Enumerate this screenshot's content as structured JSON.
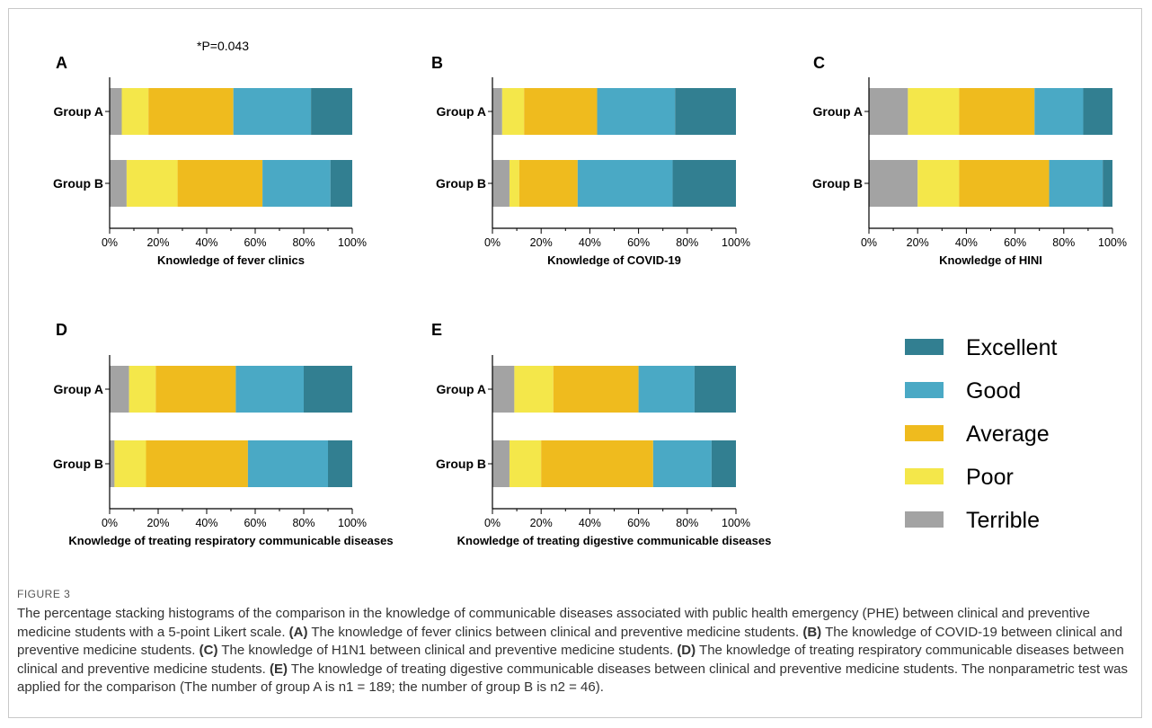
{
  "figure_label": "FIGURE 3",
  "caption_parts": [
    {
      "text": "The percentage stacking histograms of the comparison in the knowledge of communicable diseases associated with public health emergency (PHE) between clinical and preventive medicine students with a 5-point Likert scale. ",
      "bold": false
    },
    {
      "text": "(A)",
      "bold": true
    },
    {
      "text": " The knowledge of fever clinics between clinical and preventive medicine students. ",
      "bold": false
    },
    {
      "text": "(B)",
      "bold": true
    },
    {
      "text": " The knowledge of COVID-19 between clinical and preventive medicine students. ",
      "bold": false
    },
    {
      "text": "(C)",
      "bold": true
    },
    {
      "text": " The knowledge of H1N1 between clinical and preventive medicine students. ",
      "bold": false
    },
    {
      "text": "(D)",
      "bold": true
    },
    {
      "text": " The knowledge of treating respiratory communicable diseases between clinical and preventive medicine students. ",
      "bold": false
    },
    {
      "text": "(E)",
      "bold": true
    },
    {
      "text": " The knowledge of treating digestive communicable diseases between clinical and preventive medicine students. The nonparametric test was applied for the comparison (The number of group A is n1 = 189; the number of group B is n2 = 46).",
      "bold": false
    }
  ],
  "colors": {
    "Terrible": "#a3a3a3",
    "Poor": "#f4e74a",
    "Average": "#efbb1e",
    "Good": "#4aa9c5",
    "Excellent": "#327f91"
  },
  "legend": [
    "Excellent",
    "Good",
    "Average",
    "Poor",
    "Terrible"
  ],
  "chart_data": [
    {
      "panel": "A",
      "type": "bar",
      "stacked": "percent",
      "orientation": "horizontal",
      "xlabel": "Knowledge of fever clinics",
      "annotation": "*P=0.043",
      "categories": [
        "Group A",
        "Group B"
      ],
      "x_ticks": [
        "0%",
        "20%",
        "40%",
        "60%",
        "80%",
        "100%"
      ],
      "xlim": [
        0,
        100
      ],
      "series": [
        {
          "name": "Terrible",
          "values": [
            5,
            7
          ]
        },
        {
          "name": "Poor",
          "values": [
            11,
            21
          ]
        },
        {
          "name": "Average",
          "values": [
            35,
            35
          ]
        },
        {
          "name": "Good",
          "values": [
            32,
            28
          ]
        },
        {
          "name": "Excellent",
          "values": [
            17,
            9
          ]
        }
      ]
    },
    {
      "panel": "B",
      "type": "bar",
      "stacked": "percent",
      "orientation": "horizontal",
      "xlabel": "Knowledge of COVID-19",
      "categories": [
        "Group A",
        "Group B"
      ],
      "x_ticks": [
        "0%",
        "20%",
        "40%",
        "60%",
        "80%",
        "100%"
      ],
      "xlim": [
        0,
        100
      ],
      "series": [
        {
          "name": "Terrible",
          "values": [
            4,
            7
          ]
        },
        {
          "name": "Poor",
          "values": [
            9,
            4
          ]
        },
        {
          "name": "Average",
          "values": [
            30,
            24
          ]
        },
        {
          "name": "Good",
          "values": [
            32,
            39
          ]
        },
        {
          "name": "Excellent",
          "values": [
            25,
            26
          ]
        }
      ]
    },
    {
      "panel": "C",
      "type": "bar",
      "stacked": "percent",
      "orientation": "horizontal",
      "xlabel": "Knowledge of HINI",
      "categories": [
        "Group A",
        "Group B"
      ],
      "x_ticks": [
        "0%",
        "20%",
        "40%",
        "60%",
        "80%",
        "100%"
      ],
      "xlim": [
        0,
        100
      ],
      "series": [
        {
          "name": "Terrible",
          "values": [
            16,
            20
          ]
        },
        {
          "name": "Poor",
          "values": [
            21,
            17
          ]
        },
        {
          "name": "Average",
          "values": [
            31,
            37
          ]
        },
        {
          "name": "Good",
          "values": [
            20,
            22
          ]
        },
        {
          "name": "Excellent",
          "values": [
            12,
            4
          ]
        }
      ]
    },
    {
      "panel": "D",
      "type": "bar",
      "stacked": "percent",
      "orientation": "horizontal",
      "xlabel": "Knowledge of treating respiratory communicable diseases",
      "categories": [
        "Group A",
        "Group B"
      ],
      "x_ticks": [
        "0%",
        "20%",
        "40%",
        "60%",
        "80%",
        "100%"
      ],
      "xlim": [
        0,
        100
      ],
      "series": [
        {
          "name": "Terrible",
          "values": [
            8,
            2
          ]
        },
        {
          "name": "Poor",
          "values": [
            11,
            13
          ]
        },
        {
          "name": "Average",
          "values": [
            33,
            42
          ]
        },
        {
          "name": "Good",
          "values": [
            28,
            33
          ]
        },
        {
          "name": "Excellent",
          "values": [
            20,
            10
          ]
        }
      ]
    },
    {
      "panel": "E",
      "type": "bar",
      "stacked": "percent",
      "orientation": "horizontal",
      "xlabel": "Knowledge of treating digestive communicable diseases",
      "categories": [
        "Group A",
        "Group B"
      ],
      "x_ticks": [
        "0%",
        "20%",
        "40%",
        "60%",
        "80%",
        "100%"
      ],
      "xlim": [
        0,
        100
      ],
      "series": [
        {
          "name": "Terrible",
          "values": [
            9,
            7
          ]
        },
        {
          "name": "Poor",
          "values": [
            16,
            13
          ]
        },
        {
          "name": "Average",
          "values": [
            35,
            46
          ]
        },
        {
          "name": "Good",
          "values": [
            23,
            24
          ]
        },
        {
          "name": "Excellent",
          "values": [
            17,
            10
          ]
        }
      ]
    }
  ]
}
